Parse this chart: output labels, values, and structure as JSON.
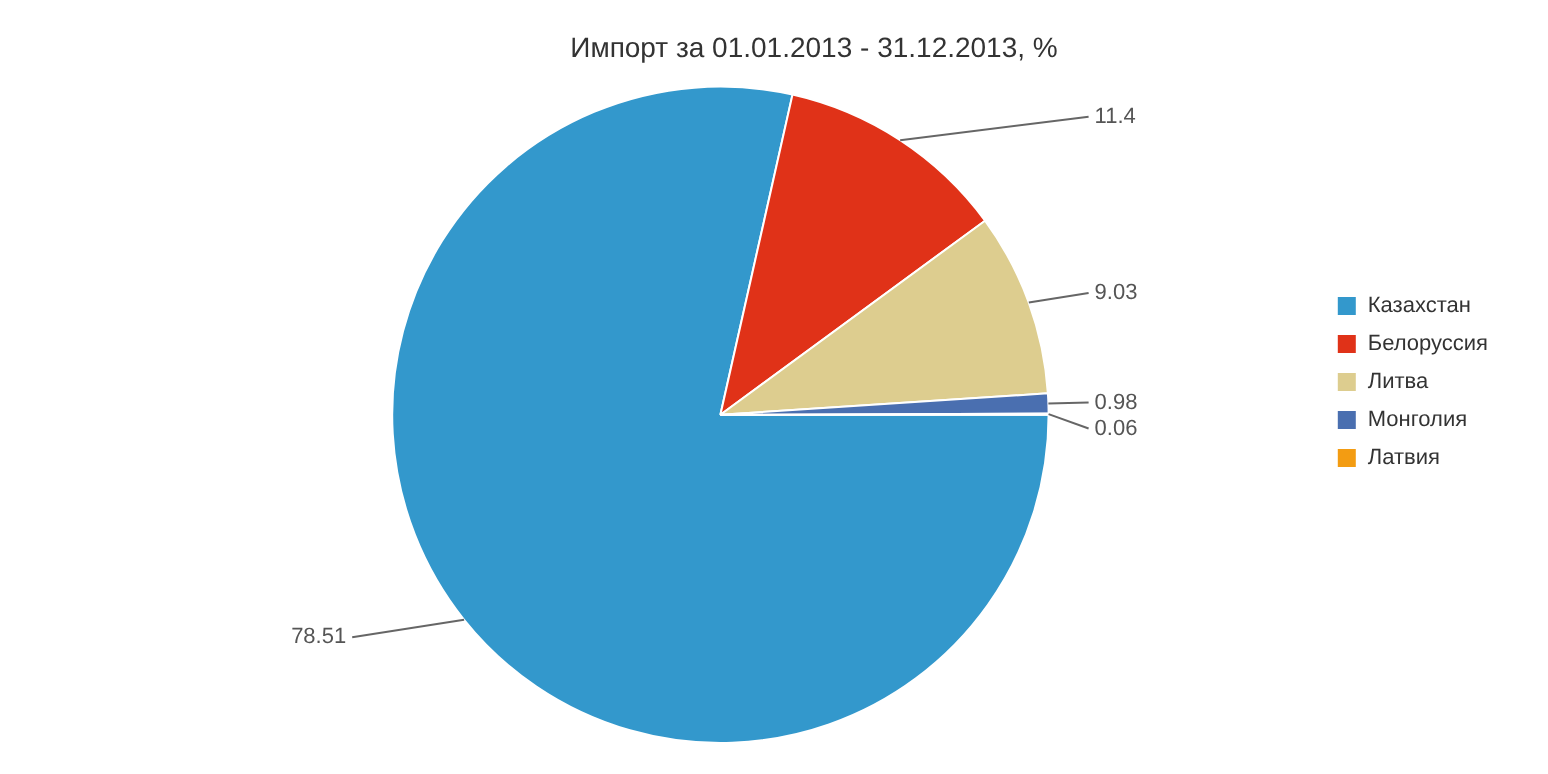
{
  "chart_data": {
    "type": "pie",
    "title": "Импорт за 01.01.2013 - 31.12.2013, %",
    "categories": [
      "Казахстан",
      "Белоруссия",
      "Литва",
      "Монголия",
      "Латвия"
    ],
    "values": [
      78.51,
      11.4,
      9.03,
      0.98,
      0.06
    ],
    "colors": [
      "#3398cc",
      "#e03218",
      "#ddcd8f",
      "#4a6fb0",
      "#f39c12"
    ],
    "data_labels": true,
    "legend": "right"
  }
}
